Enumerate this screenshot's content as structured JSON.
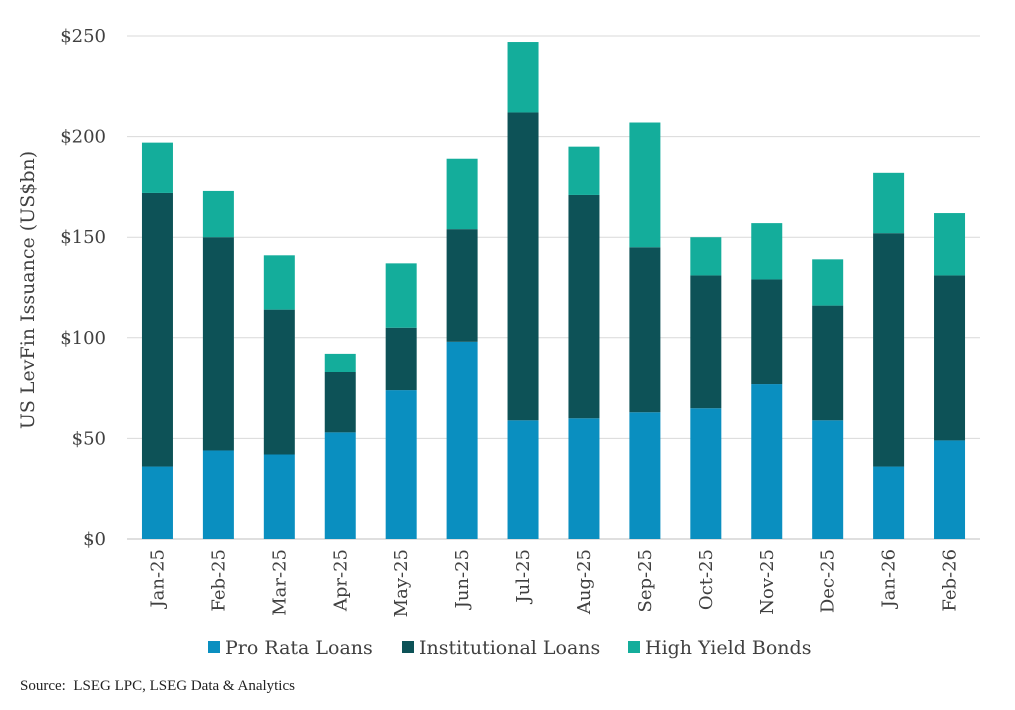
{
  "chart_data": {
    "type": "bar",
    "stacked": true,
    "title": "",
    "xlabel": "",
    "ylabel": "US LevFin Issuance (US$bn)",
    "ylim": [
      0,
      250
    ],
    "yticks": [
      0,
      50,
      100,
      150,
      200,
      250
    ],
    "ytick_labels": [
      "$0",
      "$50",
      "$100",
      "$150",
      "$200",
      "$250"
    ],
    "grid": true,
    "legend_position": "bottom",
    "categories": [
      "Jan-25",
      "Feb-25",
      "Mar-25",
      "Apr-25",
      "May-25",
      "Jun-25",
      "Jul-25",
      "Aug-25",
      "Sep-25",
      "Oct-25",
      "Nov-25",
      "Dec-25",
      "Jan-26",
      "Feb-26"
    ],
    "series": [
      {
        "name": "Pro Rata Loans",
        "color": "#0a8fc0",
        "values": [
          36,
          44,
          42,
          53,
          74,
          98,
          59,
          60,
          63,
          65,
          77,
          59,
          36,
          49
        ]
      },
      {
        "name": "Institutional Loans",
        "color": "#0d5257",
        "values": [
          136,
          106,
          72,
          30,
          31,
          56,
          153,
          111,
          82,
          66,
          52,
          57,
          116,
          82
        ]
      },
      {
        "name": "High Yield Bonds",
        "color": "#14ad9b",
        "values": [
          25,
          23,
          27,
          9,
          32,
          35,
          35,
          24,
          62,
          19,
          28,
          23,
          30,
          31
        ]
      }
    ]
  },
  "source": "Source:  LSEG LPC, LSEG Data & Analytics"
}
